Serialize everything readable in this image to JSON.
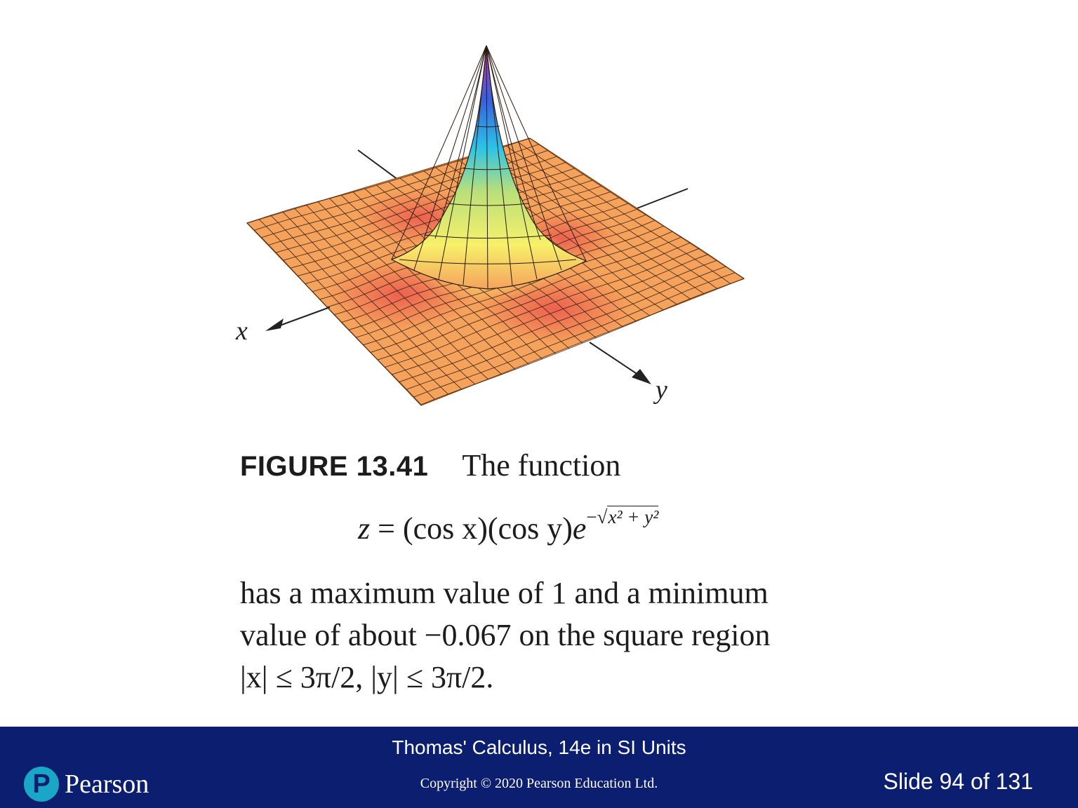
{
  "figure": {
    "axis_x_label": "x",
    "axis_y_label": "y",
    "colors": {
      "surface_base": "#f5a35c",
      "trough": "#e94b4b",
      "peak_yellow": "#f7f06a",
      "peak_cyan": "#2cc3e8",
      "peak_blue": "#3b5fd6",
      "peak_magenta": "#c43aa0",
      "grid_line": "#3a1f10"
    }
  },
  "caption": {
    "figure_number": "FIGURE 13.41",
    "lead_text": "The function",
    "equation": {
      "lhs": "z",
      "equals": "=",
      "cos_x": "(cos x)(cos y)",
      "base": "e",
      "exponent_sign": "−",
      "radical_sign": "√",
      "radicand": "x² + y²"
    },
    "body_lines": [
      "has a maximum value of 1 and a minimum",
      "value of about −0.067 on the square region",
      "|x| ≤ 3π/2, |y| ≤ 3π/2."
    ]
  },
  "footer": {
    "book_title": "Thomas' Calculus, 14e in SI Units",
    "copyright": "Copyright © 2020 Pearson Education Ltd.",
    "logo_letter": "P",
    "logo_text": "Pearson",
    "slide_number": "Slide 94 of 131",
    "background": "#0b1e6f"
  }
}
